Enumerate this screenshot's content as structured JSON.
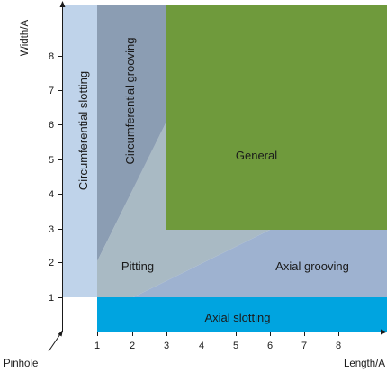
{
  "axes": {
    "x_label": "Length/A",
    "y_label": "Width/A",
    "x_ticks": [
      "1",
      "2",
      "3",
      "4",
      "5",
      "6",
      "7",
      "8"
    ],
    "y_ticks": [
      "1",
      "2",
      "3",
      "4",
      "5",
      "6",
      "7",
      "8"
    ]
  },
  "origin_label": "Pinhole",
  "regions": {
    "circumferential_slotting": {
      "label": "Circumferential slotting",
      "color": "#bfd3ea"
    },
    "circumferential_grooving": {
      "label": "Circumferential grooving",
      "color": "#8b9db3"
    },
    "general": {
      "label": "General",
      "color": "#6f9a3c"
    },
    "pitting": {
      "label": "Pitting",
      "color": "#a9bac4"
    },
    "axial_grooving": {
      "label": "Axial grooving",
      "color": "#9eb2d0"
    },
    "axial_slotting": {
      "label": "Axial slotting",
      "color": "#00a4e0"
    }
  }
}
